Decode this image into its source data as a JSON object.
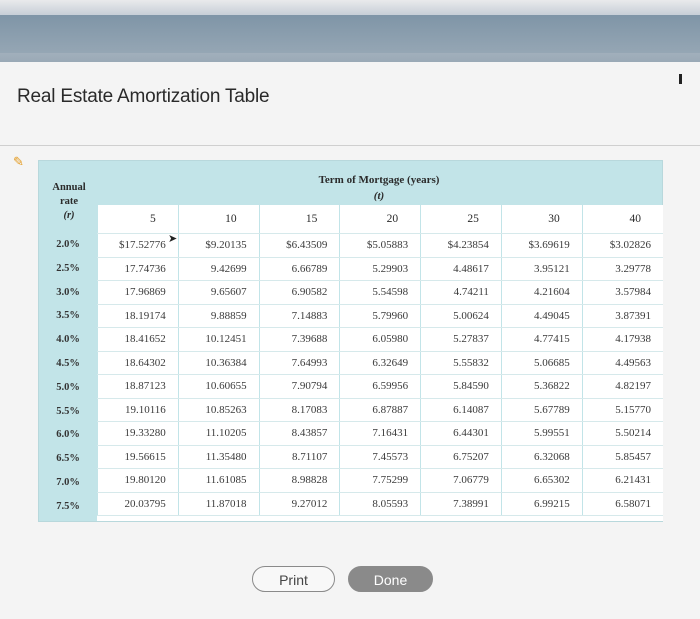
{
  "window": {
    "title": "Real Estate Amortization Table"
  },
  "table": {
    "rate_header": {
      "line1": "Annual",
      "line2": "rate",
      "line3": "(r)"
    },
    "term_header": {
      "line1": "Term of Mortgage (years)",
      "line2": "(t)"
    },
    "terms": [
      "5",
      "10",
      "15",
      "20",
      "25",
      "30",
      "40"
    ],
    "rates": [
      "2.0%",
      "2.5%",
      "3.0%",
      "3.5%",
      "4.0%",
      "4.5%",
      "5.0%",
      "5.5%",
      "6.0%",
      "6.5%",
      "7.0%",
      "7.5%"
    ],
    "rows": [
      [
        "$17.52776",
        "$9.20135",
        "$6.43509",
        "$5.05883",
        "$4.23854",
        "$3.69619",
        "$3.02826"
      ],
      [
        "17.74736",
        "9.42699",
        "6.66789",
        "5.29903",
        "4.48617",
        "3.95121",
        "3.29778"
      ],
      [
        "17.96869",
        "9.65607",
        "6.90582",
        "5.54598",
        "4.74211",
        "4.21604",
        "3.57984"
      ],
      [
        "18.19174",
        "9.88859",
        "7.14883",
        "5.79960",
        "5.00624",
        "4.49045",
        "3.87391"
      ],
      [
        "18.41652",
        "10.12451",
        "7.39688",
        "6.05980",
        "5.27837",
        "4.77415",
        "4.17938"
      ],
      [
        "18.64302",
        "10.36384",
        "7.64993",
        "6.32649",
        "5.55832",
        "5.06685",
        "4.49563"
      ],
      [
        "18.87123",
        "10.60655",
        "7.90794",
        "6.59956",
        "5.84590",
        "5.36822",
        "4.82197"
      ],
      [
        "19.10116",
        "10.85263",
        "8.17083",
        "6.87887",
        "6.14087",
        "5.67789",
        "5.15770"
      ],
      [
        "19.33280",
        "11.10205",
        "8.43857",
        "7.16431",
        "6.44301",
        "5.99551",
        "5.50214"
      ],
      [
        "19.56615",
        "11.35480",
        "8.71107",
        "7.45573",
        "6.75207",
        "6.32068",
        "5.85457"
      ],
      [
        "19.80120",
        "11.61085",
        "8.98828",
        "7.75299",
        "7.06779",
        "6.65302",
        "6.21431"
      ],
      [
        "20.03795",
        "11.87018",
        "9.27012",
        "8.05593",
        "7.38991",
        "6.99215",
        "6.58071"
      ]
    ]
  },
  "buttons": {
    "print": "Print",
    "done": "Done"
  },
  "icons": {
    "edit": "pencil-icon",
    "minimize": "minimize-icon",
    "cursor": "cursor-icon"
  },
  "colors": {
    "table_header_bg": "#c2e4e8",
    "done_bg": "#8a8a8a"
  }
}
